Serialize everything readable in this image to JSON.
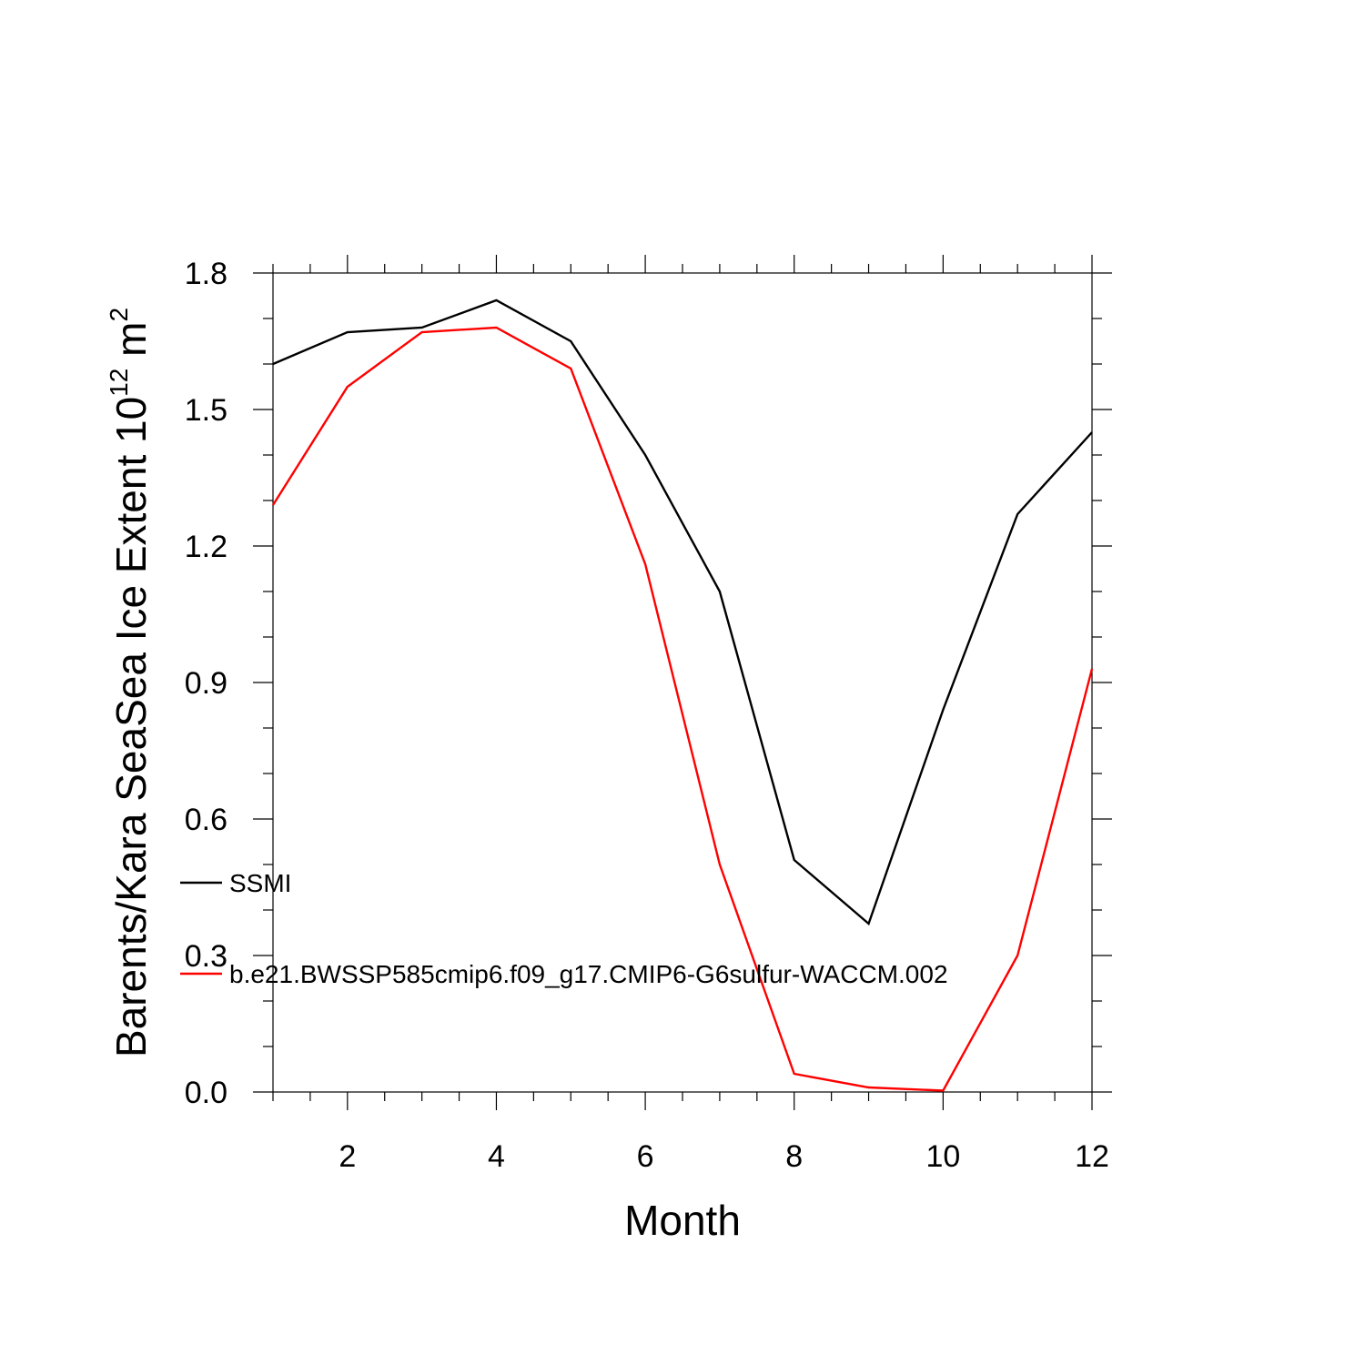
{
  "chart_data": {
    "type": "line",
    "xlabel": "Month",
    "ylabel": "Barents/Kara SeaSea Ice Extent 10",
    "ylabel_exponent": "12",
    "ylabel_unit": " m",
    "ylabel_unit_exponent": "2",
    "xlim": [
      1,
      12
    ],
    "ylim": [
      0.0,
      1.8
    ],
    "x_ticks": [
      2,
      4,
      6,
      8,
      10,
      12
    ],
    "y_ticks": [
      "0.0",
      "0.3",
      "0.6",
      "0.9",
      "1.2",
      "1.5",
      "1.8"
    ],
    "x": [
      1,
      2,
      3,
      4,
      5,
      6,
      7,
      8,
      9,
      10,
      11,
      12
    ],
    "series": [
      {
        "name": "SSMI",
        "color": "#000000",
        "values": [
          1.6,
          1.67,
          1.68,
          1.74,
          1.65,
          1.4,
          1.1,
          0.51,
          0.37,
          0.84,
          1.27,
          1.45
        ]
      },
      {
        "name": "b.e21.BWSSP585cmip6.f09_g17.CMIP6-G6sulfur-WACCM.002",
        "color": "#ff0000",
        "values": [
          1.29,
          1.55,
          1.67,
          1.68,
          1.59,
          1.16,
          0.5,
          0.04,
          0.01,
          0.003,
          0.3,
          0.93
        ]
      }
    ],
    "legend_position": "inside-left",
    "grid": false
  }
}
